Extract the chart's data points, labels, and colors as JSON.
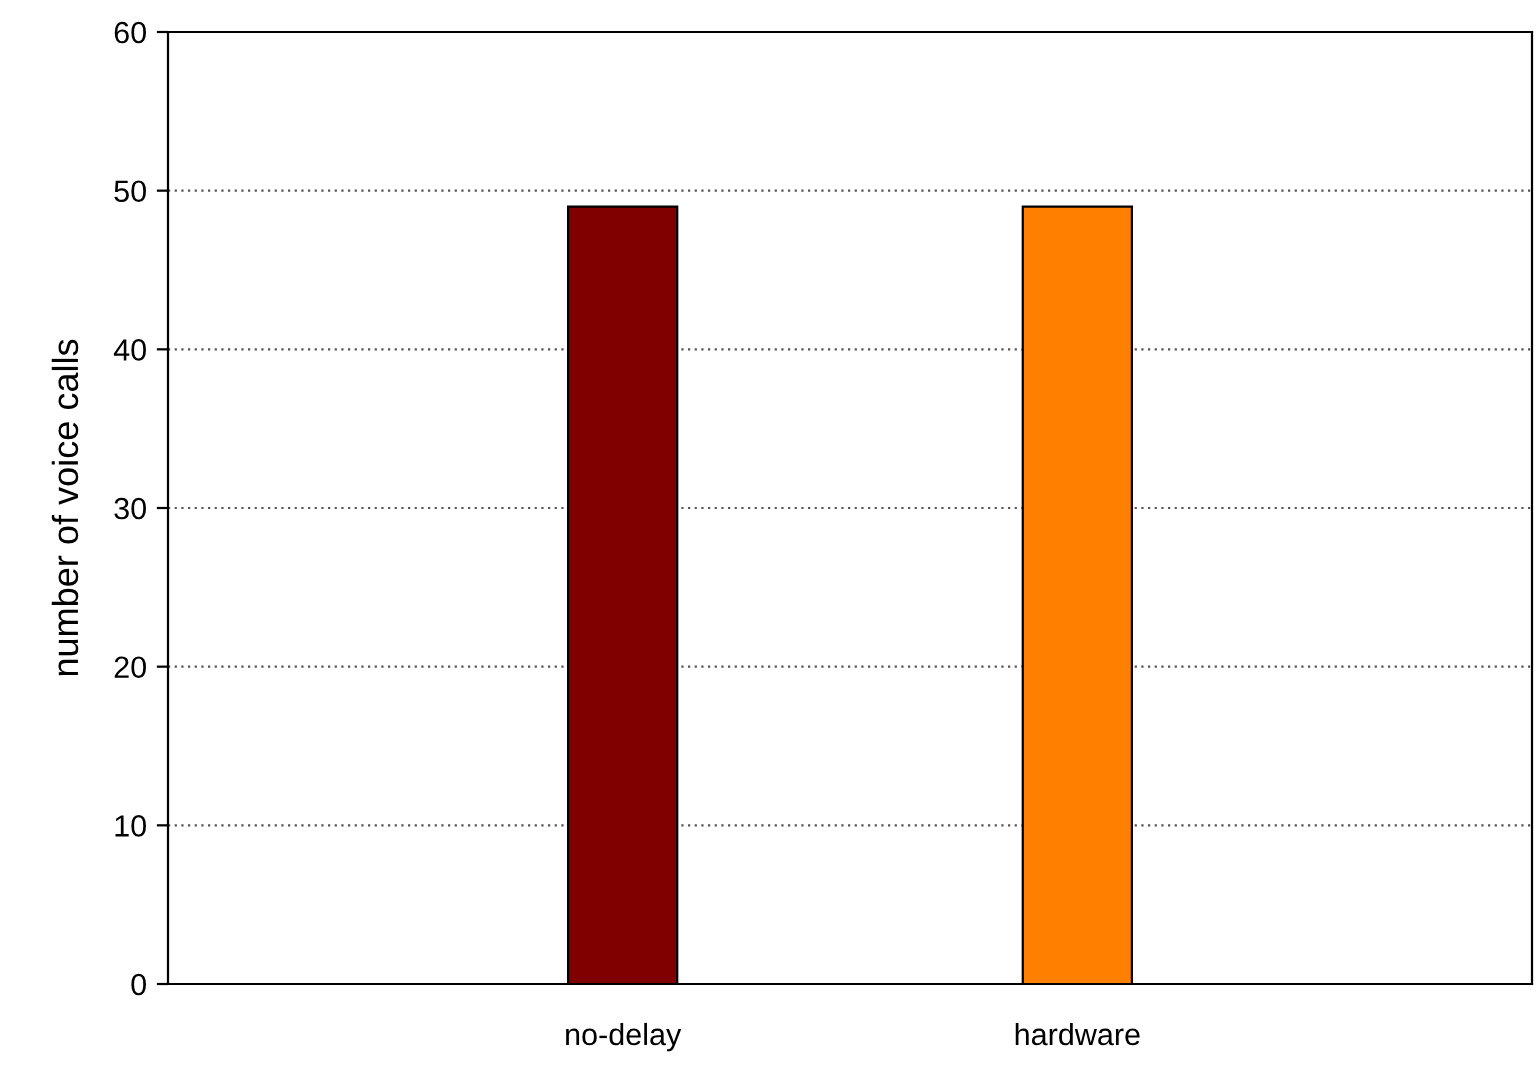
{
  "chart_data": {
    "type": "bar",
    "ylabel": "number of voice calls",
    "categories": [
      "no-delay",
      "hardware"
    ],
    "values": [
      49,
      49
    ],
    "colors": [
      "#800000",
      "#ff8000"
    ],
    "ylim": [
      0,
      60
    ],
    "yticks": [
      0,
      10,
      20,
      30,
      40,
      50,
      60
    ],
    "grid": "y",
    "legend": false
  }
}
